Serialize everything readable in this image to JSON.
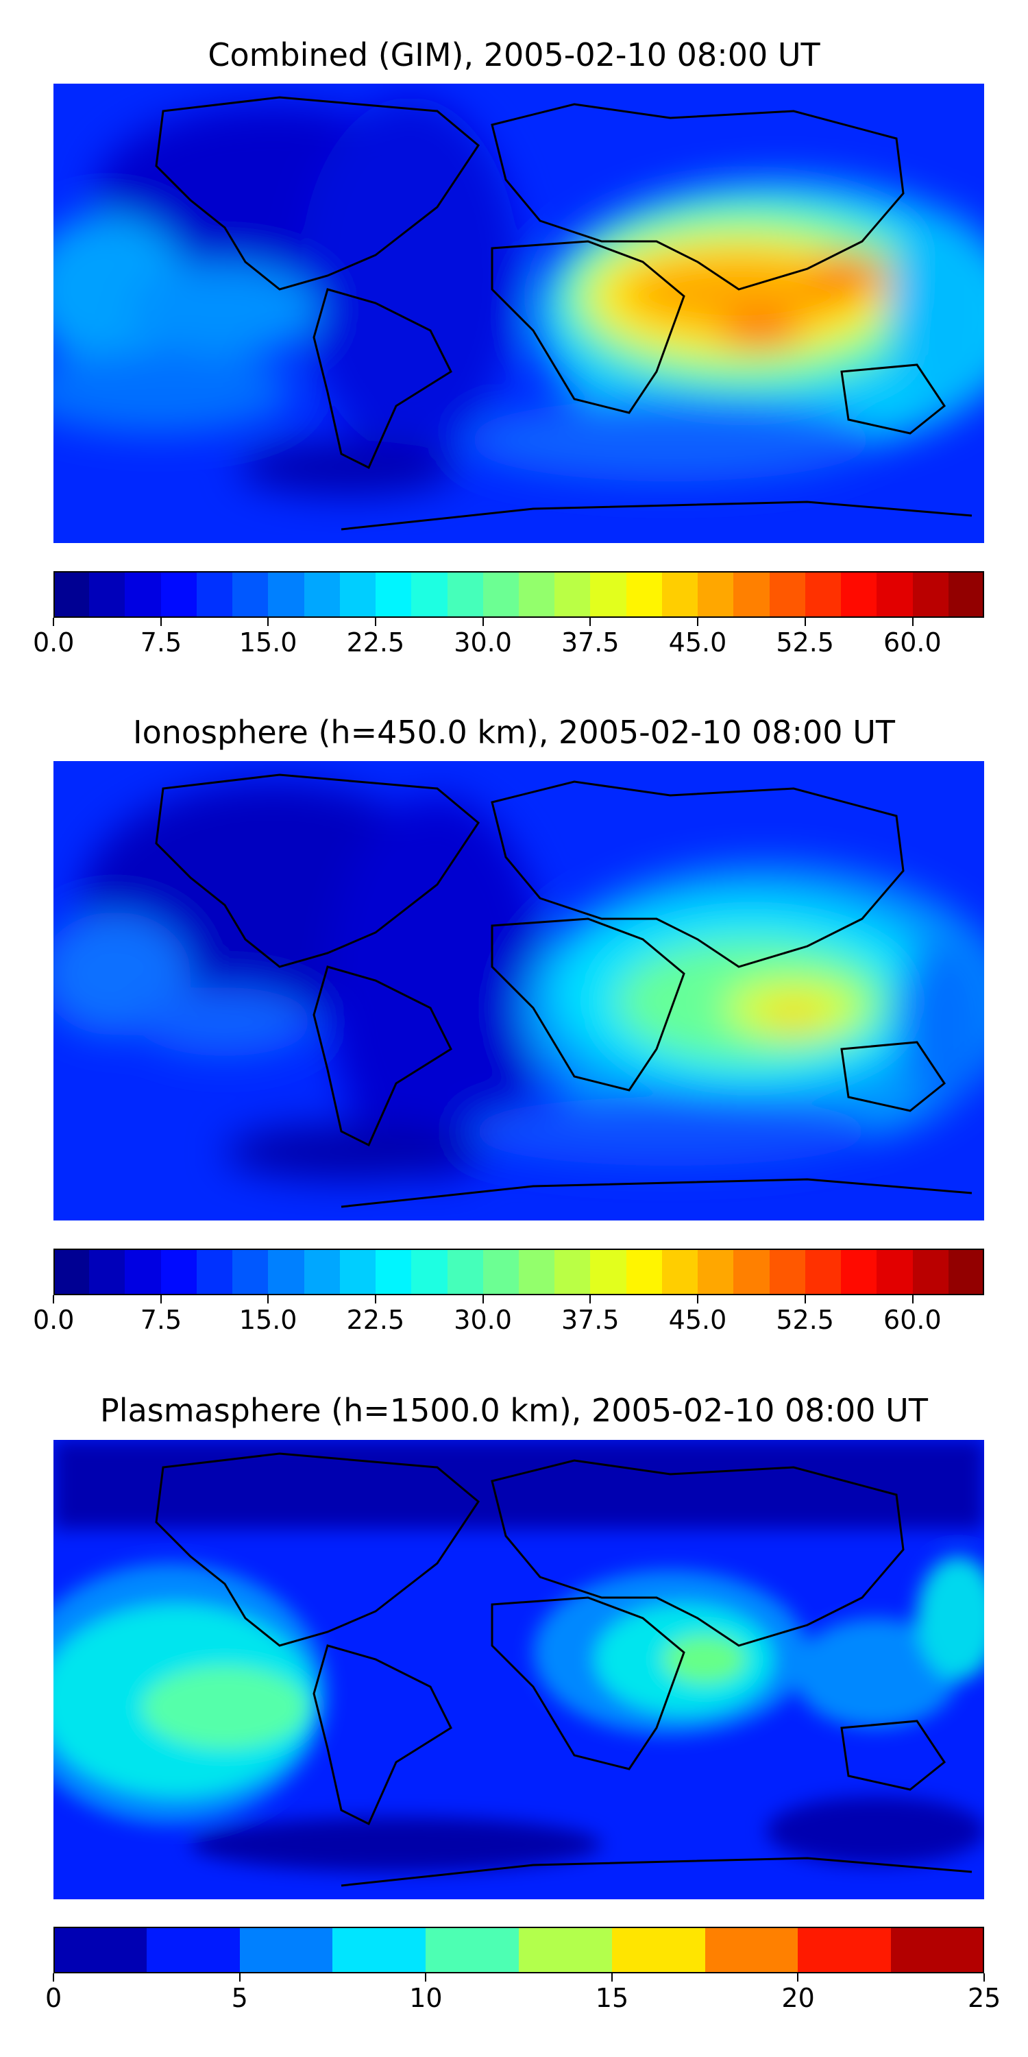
{
  "panels": [
    {
      "title": "Combined (GIM), 2005-02-10 08:00 UT",
      "colorbar": {
        "min": 0.0,
        "max": 65.0,
        "levels": 26,
        "ticks": [
          "0.0",
          "7.5",
          "15.0",
          "22.5",
          "30.0",
          "37.5",
          "45.0",
          "52.5",
          "60.0"
        ]
      }
    },
    {
      "title": "Ionosphere  (h=450.0 km), 2005-02-10 08:00 UT",
      "colorbar": {
        "min": 0.0,
        "max": 65.0,
        "levels": 26,
        "ticks": [
          "0.0",
          "7.5",
          "15.0",
          "22.5",
          "30.0",
          "37.5",
          "45.0",
          "52.5",
          "60.0"
        ]
      }
    },
    {
      "title": "Plasmasphere (h=1500.0 km), 2005-02-10 08:00 UT",
      "colorbar": {
        "min": 0,
        "max": 25,
        "levels": 10,
        "ticks": [
          "0",
          "5",
          "10",
          "15",
          "20",
          "25"
        ]
      }
    }
  ],
  "colormap": "jet",
  "coastline_color": "#000000"
}
